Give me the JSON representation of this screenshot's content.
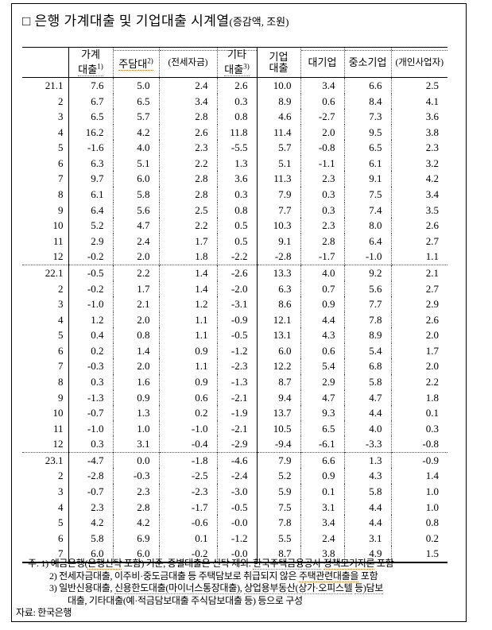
{
  "title": {
    "prefix": "□",
    "main": "은행 가계대출 및 기업대출 시계열",
    "unit": "(증감액, 조원)"
  },
  "table": {
    "headers": {
      "date": "",
      "household": {
        "l1": "가계",
        "l2": "대출",
        "sup": "1)"
      },
      "mortgage": {
        "label": "주담대",
        "sup": "2)"
      },
      "jeonse": {
        "label": "(전세자금)"
      },
      "other": {
        "l1": "기타",
        "l2": "대출",
        "sup": "3)"
      },
      "corporate": {
        "l1": "기업",
        "l2": "대출"
      },
      "large": {
        "label": "대기업"
      },
      "sme": {
        "label": "중소기업"
      },
      "sole": {
        "label": "(개인사업자)"
      }
    },
    "groups": [
      {
        "rows": [
          [
            "21.1",
            "7.6",
            "5.0",
            "2.4",
            "2.6",
            "10.0",
            "3.4",
            "6.6",
            "2.5"
          ],
          [
            "2",
            "6.7",
            "6.5",
            "3.4",
            "0.3",
            "8.9",
            "0.6",
            "8.4",
            "4.1"
          ],
          [
            "3",
            "6.5",
            "5.7",
            "2.8",
            "0.8",
            "4.6",
            "-2.7",
            "7.3",
            "3.6"
          ],
          [
            "4",
            "16.2",
            "4.2",
            "2.6",
            "11.8",
            "11.4",
            "2.0",
            "9.5",
            "3.8"
          ],
          [
            "5",
            "-1.6",
            "4.0",
            "2.3",
            "-5.5",
            "5.7",
            "-0.8",
            "6.5",
            "2.3"
          ],
          [
            "6",
            "6.3",
            "5.1",
            "2.2",
            "1.3",
            "5.1",
            "-1.1",
            "6.1",
            "3.2"
          ],
          [
            "7",
            "9.7",
            "6.0",
            "2.8",
            "3.6",
            "11.3",
            "2.3",
            "9.1",
            "4.2"
          ],
          [
            "8",
            "6.1",
            "5.8",
            "2.8",
            "0.3",
            "7.9",
            "0.3",
            "7.5",
            "3.4"
          ],
          [
            "9",
            "6.4",
            "5.6",
            "2.5",
            "0.8",
            "7.7",
            "0.3",
            "7.4",
            "3.5"
          ],
          [
            "10",
            "5.2",
            "4.7",
            "2.2",
            "0.5",
            "10.3",
            "2.3",
            "8.0",
            "2.6"
          ],
          [
            "11",
            "2.9",
            "2.4",
            "1.7",
            "0.5",
            "9.1",
            "2.8",
            "6.4",
            "2.7"
          ],
          [
            "12",
            "-0.2",
            "2.0",
            "1.8",
            "-2.2",
            "-2.8",
            "-1.7",
            "-1.0",
            "1.1"
          ]
        ]
      },
      {
        "rows": [
          [
            "22.1",
            "-0.5",
            "2.2",
            "1.4",
            "-2.6",
            "13.3",
            "4.0",
            "9.2",
            "2.1"
          ],
          [
            "2",
            "-0.2",
            "1.7",
            "1.4",
            "-2.0",
            "6.3",
            "0.7",
            "5.6",
            "2.7"
          ],
          [
            "3",
            "-1.0",
            "2.1",
            "1.2",
            "-3.1",
            "8.6",
            "0.9",
            "7.7",
            "2.9"
          ],
          [
            "4",
            "1.2",
            "2.0",
            "1.1",
            "-0.9",
            "12.1",
            "4.4",
            "7.8",
            "2.6"
          ],
          [
            "5",
            "0.4",
            "0.8",
            "1.1",
            "-0.5",
            "13.1",
            "4.3",
            "8.9",
            "2.0"
          ],
          [
            "6",
            "0.2",
            "1.4",
            "0.9",
            "-1.2",
            "6.0",
            "0.6",
            "5.4",
            "1.7"
          ],
          [
            "7",
            "-0.3",
            "2.0",
            "1.1",
            "-2.3",
            "12.2",
            "5.4",
            "6.8",
            "2.0"
          ],
          [
            "8",
            "0.3",
            "1.6",
            "0.9",
            "-1.3",
            "8.7",
            "2.9",
            "5.8",
            "2.2"
          ],
          [
            "9",
            "-1.3",
            "0.9",
            "0.6",
            "-2.1",
            "9.4",
            "4.7",
            "4.7",
            "1.8"
          ],
          [
            "10",
            "-0.7",
            "1.3",
            "0.2",
            "-1.9",
            "13.7",
            "9.3",
            "4.4",
            "0.1"
          ],
          [
            "11",
            "-1.0",
            "1.0",
            "-1.0",
            "-2.1",
            "10.5",
            "6.5",
            "4.0",
            "0.3"
          ],
          [
            "12",
            "0.3",
            "3.1",
            "-0.4",
            "-2.9",
            "-9.4",
            "-6.1",
            "-3.3",
            "-0.8"
          ]
        ]
      },
      {
        "rows": [
          [
            "23.1",
            "-4.7",
            "0.0",
            "-1.8",
            "-4.6",
            "7.9",
            "6.6",
            "1.3",
            "-0.9"
          ],
          [
            "2",
            "-2.8",
            "-0.3",
            "-2.5",
            "-2.4",
            "5.2",
            "0.9",
            "4.3",
            "1.4"
          ],
          [
            "3",
            "-0.7",
            "2.3",
            "-2.3",
            "-3.0",
            "5.9",
            "0.1",
            "5.8",
            "1.0"
          ],
          [
            "4",
            "2.3",
            "2.8",
            "-1.7",
            "-0.5",
            "7.5",
            "3.1",
            "4.4",
            "1.0"
          ],
          [
            "5",
            "4.2",
            "4.2",
            "-0.6",
            "-0.0",
            "7.8",
            "3.4",
            "4.4",
            "0.8"
          ],
          [
            "6",
            "5.8",
            "6.9",
            "0.1",
            "-1.2",
            "5.5",
            "2.4",
            "3.1",
            "0.2"
          ],
          [
            "7",
            "6.0",
            "6.0",
            "-0.2",
            "-0.0",
            "8.7",
            "3.8",
            "4.9",
            "1.5"
          ]
        ]
      }
    ]
  },
  "footnotes": {
    "lines": [
      {
        "segments": [
          {
            "t": "주: 1) 예금은행("
          },
          {
            "t": "은행신탁",
            "m": true
          },
          {
            "t": " 포함) 기준, 종별대출은 신탁 제외. "
          },
          {
            "t": "한국주택금융공사",
            "m": true
          },
          {
            "t": " "
          },
          {
            "t": "정책모기지론",
            "m": true
          },
          {
            "t": " 포함"
          }
        ]
      },
      {
        "segments": [
          {
            "t": "2) 전세자금대출, 이주비·중도금대출 등 주택담보로 취급되지 않은 "
          },
          {
            "t": "주택관련대출을",
            "m": true
          },
          {
            "t": " 포함"
          }
        ]
      },
      {
        "segments": [
          {
            "t": "3) 일반신용대출, "
          },
          {
            "t": "신용한도대출(마이너스통장대출)",
            "m": true
          },
          {
            "t": ", "
          },
          {
            "t": "상업용부동산(상가·오피스텔",
            "m": true
          },
          {
            "t": " "
          },
          {
            "t": "등)담보",
            "m": true
          }
        ]
      },
      {
        "segments": [
          {
            "t": "대출, 기타대출(예·적금담보대출 주식담보대출 등) 등으로 구성"
          }
        ]
      }
    ],
    "source": "자료: 한국은행"
  }
}
